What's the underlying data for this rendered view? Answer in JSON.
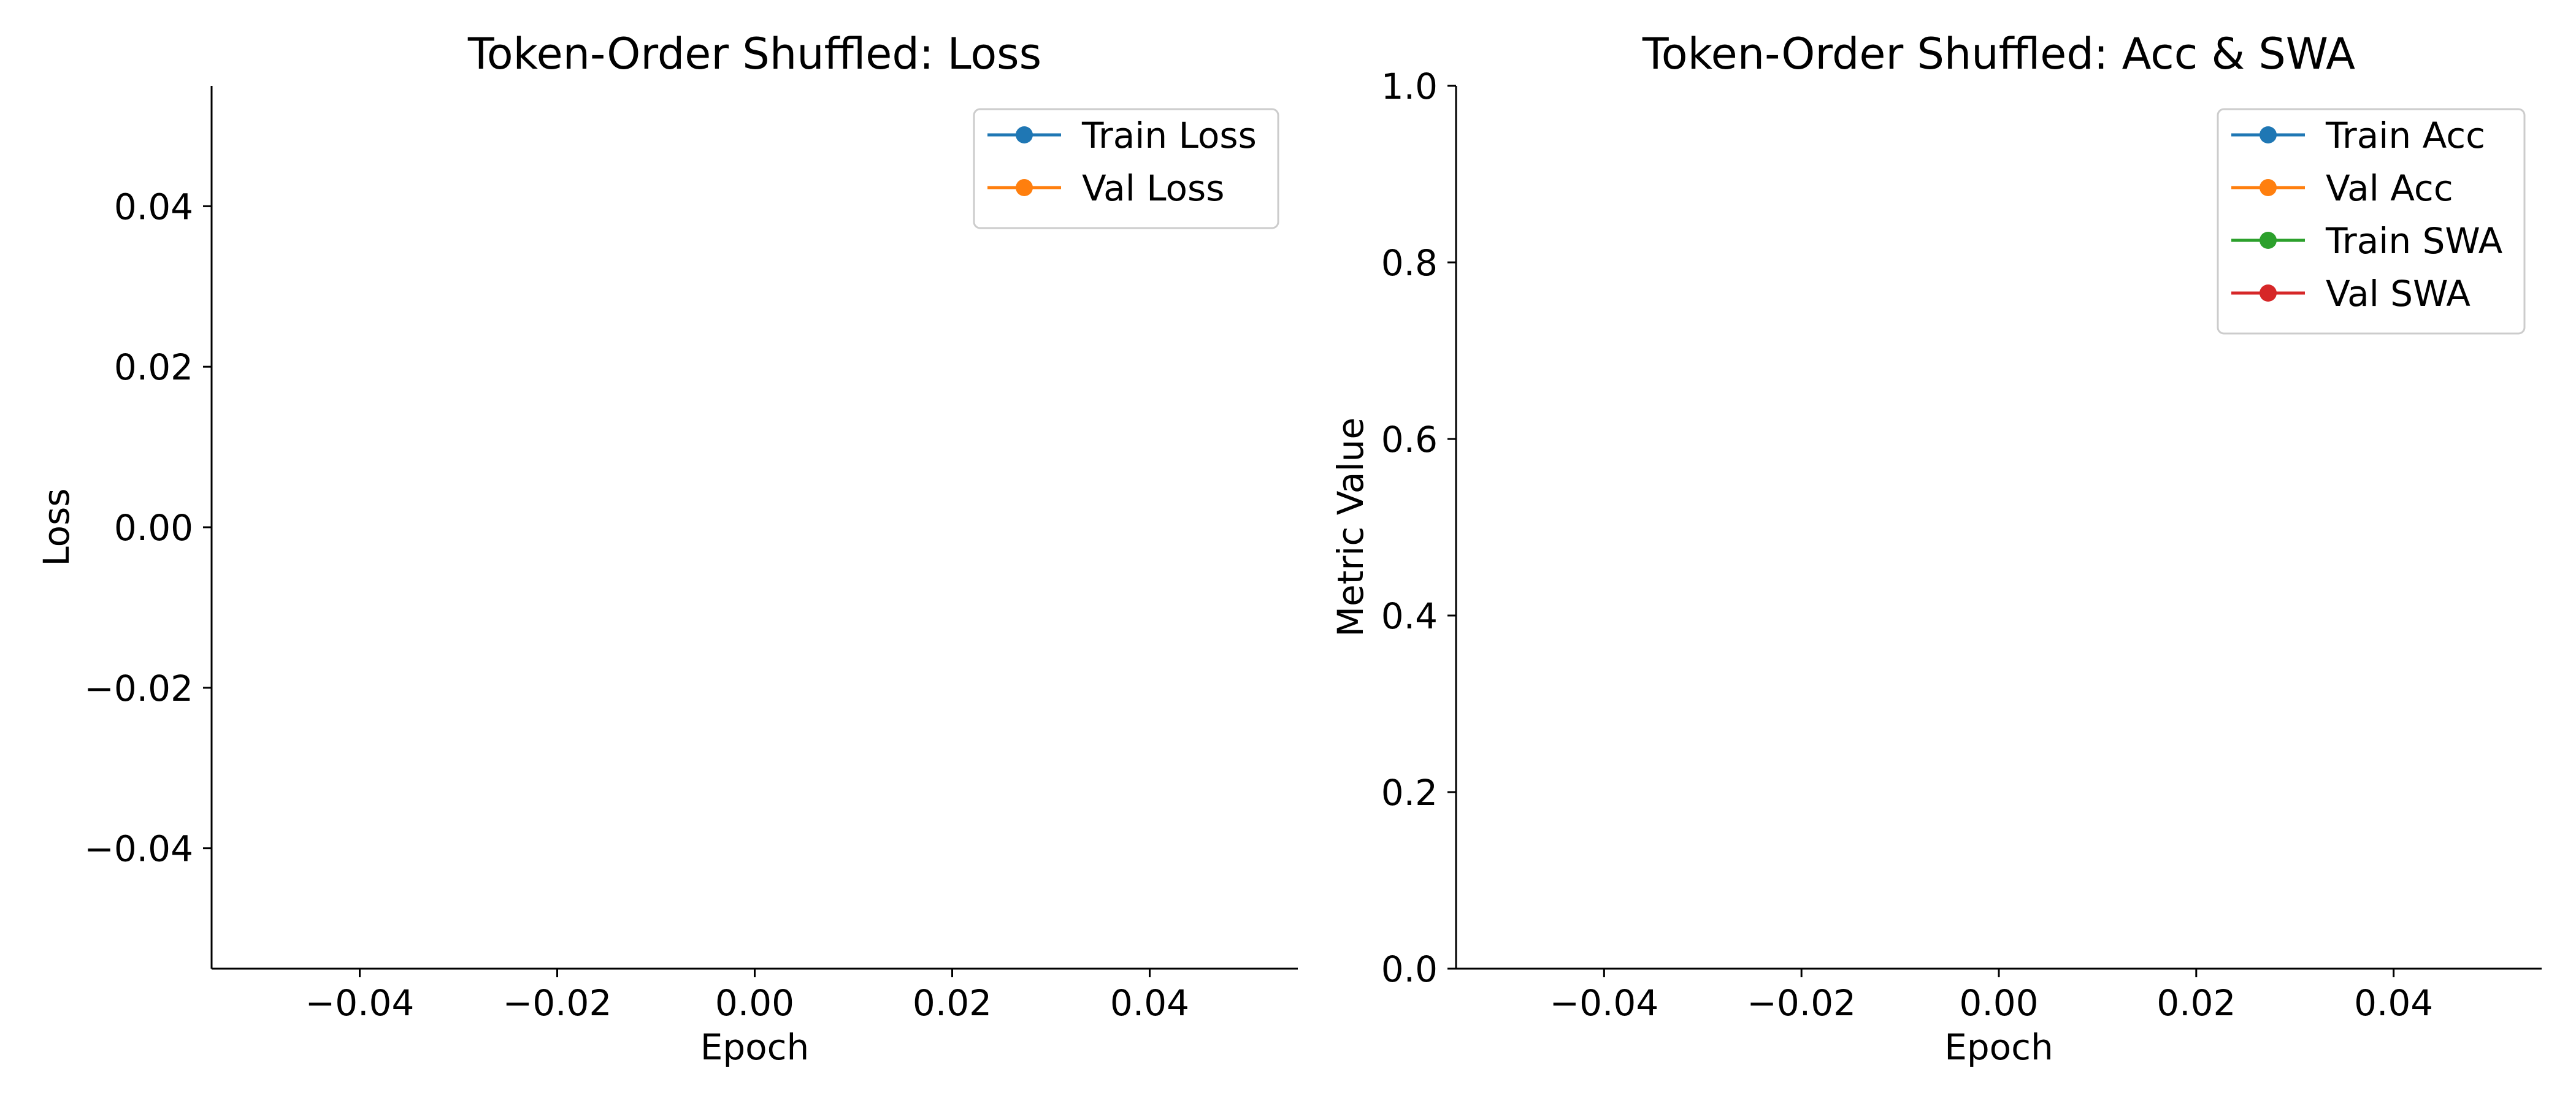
{
  "chart_data": [
    {
      "type": "line",
      "title": "Token-Order Shuffled: Loss",
      "xlabel": "Epoch",
      "ylabel": "Loss",
      "xlim": [
        -0.055,
        0.055
      ],
      "ylim": [
        -0.055,
        0.055
      ],
      "xticks": [
        -0.04,
        -0.02,
        0.0,
        0.02,
        0.04
      ],
      "xtick_labels": [
        "−0.04",
        "−0.02",
        "0.00",
        "0.02",
        "0.04"
      ],
      "yticks": [
        0.04,
        0.02,
        0.0,
        -0.02,
        -0.04
      ],
      "ytick_labels": [
        "0.04",
        "0.02",
        "0.00",
        "−0.02",
        "−0.04"
      ],
      "grid": false,
      "legend_position": "upper right",
      "series": [
        {
          "name": "Train Loss",
          "color": "#1f77b4",
          "x": [],
          "y": []
        },
        {
          "name": "Val Loss",
          "color": "#ff7f0e",
          "x": [],
          "y": []
        }
      ]
    },
    {
      "type": "line",
      "title": "Token-Order Shuffled: Acc & SWA",
      "xlabel": "Epoch",
      "ylabel": "Metric Value",
      "xlim": [
        -0.055,
        0.055
      ],
      "ylim": [
        0.0,
        1.0
      ],
      "xticks": [
        -0.04,
        -0.02,
        0.0,
        0.02,
        0.04
      ],
      "xtick_labels": [
        "−0.04",
        "−0.02",
        "0.00",
        "0.02",
        "0.04"
      ],
      "yticks": [
        1.0,
        0.8,
        0.6,
        0.4,
        0.2,
        0.0
      ],
      "ytick_labels": [
        "1.0",
        "0.8",
        "0.6",
        "0.4",
        "0.2",
        "0.0"
      ],
      "grid": false,
      "legend_position": "upper right",
      "series": [
        {
          "name": "Train Acc",
          "color": "#1f77b4",
          "x": [],
          "y": []
        },
        {
          "name": "Val Acc",
          "color": "#ff7f0e",
          "x": [],
          "y": []
        },
        {
          "name": "Train SWA",
          "color": "#2ca02c",
          "x": [],
          "y": []
        },
        {
          "name": "Val SWA",
          "color": "#d62728",
          "x": [],
          "y": []
        }
      ]
    }
  ]
}
